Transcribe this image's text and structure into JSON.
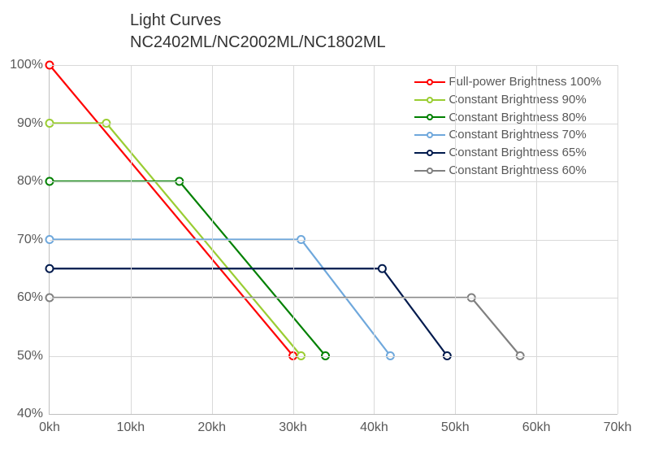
{
  "title_line1": "Light Curves",
  "title_line2": "NC2402ML/NC2002ML/NC1802ML",
  "title_fontsize": 20,
  "x": {
    "min": 0,
    "max": 70,
    "step": 10,
    "labels": [
      "0kh",
      "10kh",
      "20kh",
      "30kh",
      "40kh",
      "50kh",
      "60kh",
      "70kh"
    ]
  },
  "y": {
    "min": 40,
    "max": 100,
    "step": 10,
    "labels": [
      "40%",
      "50%",
      "60%",
      "70%",
      "80%",
      "90%",
      "100%"
    ]
  },
  "grid_color": "#d9d9d9",
  "axis_color": "#bfbfbf",
  "text_color": "#595959",
  "background_color": "#ffffff",
  "line_width": 2.2,
  "marker_radius": 4.5,
  "marker_fill": "#ffffff",
  "tick_fontsize": 16,
  "legend_fontsize": 15,
  "legend_position": "top-right-inside",
  "series": [
    {
      "name": "Full-power Brightness 100%",
      "color": "#ff0000",
      "points": [
        [
          0,
          100
        ],
        [
          30,
          50
        ]
      ]
    },
    {
      "name": "Constant Brightness 90%",
      "color": "#9acd32",
      "points": [
        [
          0,
          90
        ],
        [
          7,
          90
        ],
        [
          31,
          50
        ]
      ]
    },
    {
      "name": "Constant Brightness 80%",
      "color": "#008000",
      "points": [
        [
          0,
          80
        ],
        [
          16,
          80
        ],
        [
          34,
          50
        ]
      ]
    },
    {
      "name": "Constant Brightness 70%",
      "color": "#6fa8dc",
      "points": [
        [
          0,
          70
        ],
        [
          31,
          70
        ],
        [
          42,
          50
        ]
      ]
    },
    {
      "name": "Constant Brightness 65%",
      "color": "#001a4d",
      "points": [
        [
          0,
          65
        ],
        [
          41,
          65
        ],
        [
          49,
          50
        ]
      ]
    },
    {
      "name": "Constant Brightness 60%",
      "color": "#808080",
      "points": [
        [
          0,
          60
        ],
        [
          52,
          60
        ],
        [
          58,
          50
        ]
      ]
    }
  ]
}
